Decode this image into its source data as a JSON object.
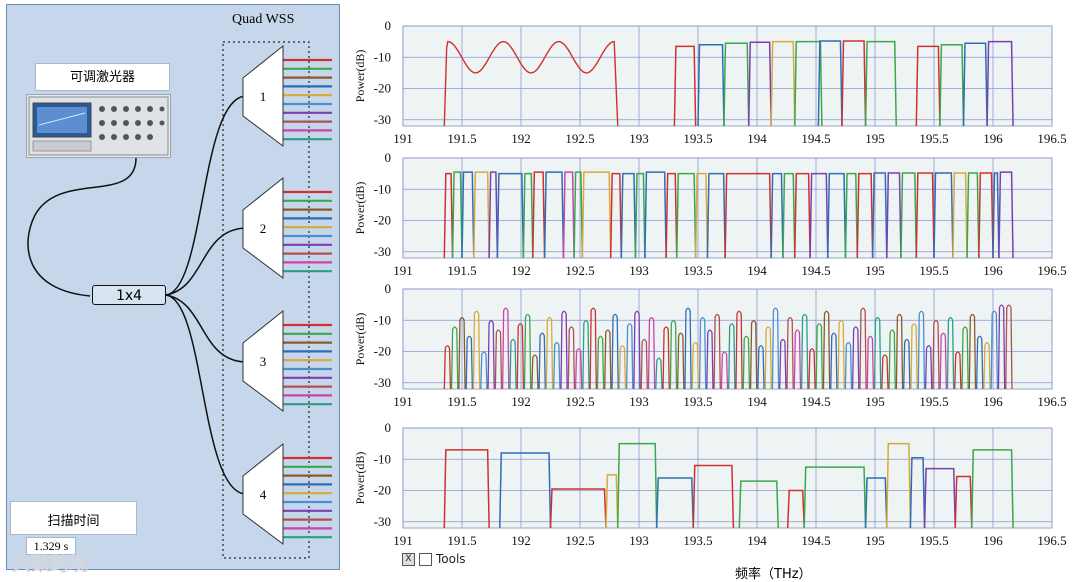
{
  "diagram": {
    "wss_title": "Quad WSS",
    "laser_label": "可调激光器",
    "splitter_label": "1x4",
    "sweep_label": "扫描时间",
    "sweep_value": "1.329 s",
    "port_numbers": [
      "1",
      "2",
      "3",
      "4"
    ],
    "tools_label": "Tools",
    "tools_checkbox": "X",
    "watermark": "大数跨境"
  },
  "colors": {
    "panel_bg": "#c6d7eb",
    "plot_bg": "#eef4f4",
    "grid": "#8f95cf",
    "fiber_colors": [
      "#d03030",
      "#3aa84a",
      "#8b5a2b",
      "#2f6db5",
      "#d9a93a",
      "#4a8fd0",
      "#7a3fb0",
      "#b05050",
      "#cc44aa",
      "#2a9e8a"
    ]
  },
  "chart_data": [
    {
      "type": "line",
      "title": "",
      "xlabel": "频率（THz）",
      "ylabel": "Power(dB)",
      "xlim": [
        191,
        196.5
      ],
      "ylim": [
        -32,
        0
      ],
      "x_ticks": [
        "191",
        "191.5",
        "192",
        "192.5",
        "193",
        "193.5",
        "194",
        "194.5",
        "195",
        "195.5",
        "196",
        "196.5"
      ],
      "y_ticks": [
        "0",
        "-10",
        "-20",
        "-30"
      ],
      "mode": "flat",
      "channels": [
        [
          193.3,
          193.48,
          -6.5,
          "#d03030"
        ],
        [
          193.5,
          193.72,
          -6,
          "#2f6db5"
        ],
        [
          193.72,
          193.93,
          -5.5,
          "#3aa84a"
        ],
        [
          193.93,
          194.12,
          -5.2,
          "#7a3fb0"
        ],
        [
          194.12,
          194.32,
          -5,
          "#d9a93a"
        ],
        [
          194.32,
          194.55,
          -5,
          "#3aa84a"
        ],
        [
          194.52,
          194.72,
          -4.8,
          "#2f6db5"
        ],
        [
          194.72,
          194.92,
          -4.8,
          "#d03030"
        ],
        [
          194.92,
          195.18,
          -5,
          "#3aa84a"
        ],
        [
          195.35,
          195.55,
          -6.5,
          "#d03030"
        ],
        [
          195.55,
          195.75,
          -6,
          "#3aa84a"
        ],
        [
          195.75,
          195.95,
          -5.5,
          "#2f6db5"
        ],
        [
          195.95,
          196.17,
          -5,
          "#7a3fb0"
        ]
      ],
      "ripple": {
        "start": 191.35,
        "end": 192.82,
        "top": -5,
        "bottom": -15,
        "color": "#d03030"
      }
    },
    {
      "type": "line",
      "title": "",
      "xlabel": "频率（THz）",
      "ylabel": "Power(dB)",
      "xlim": [
        191,
        196.5
      ],
      "ylim": [
        -32,
        0
      ],
      "x_ticks": [
        "191",
        "191.5",
        "192",
        "192.5",
        "193",
        "193.5",
        "194",
        "194.5",
        "195",
        "195.5",
        "196",
        "196.5"
      ],
      "y_ticks": [
        "0",
        "-10",
        "-20",
        "-30"
      ],
      "mode": "flat",
      "channels": [
        [
          191.35,
          191.42,
          -5,
          "#d03030"
        ],
        [
          191.42,
          191.5,
          -4.5,
          "#3aa84a"
        ],
        [
          191.5,
          191.6,
          -4.5,
          "#2f6db5"
        ],
        [
          191.6,
          191.73,
          -4.5,
          "#d9a93a"
        ],
        [
          191.73,
          191.8,
          -4.5,
          "#7a3fb0"
        ],
        [
          191.8,
          192.02,
          -5,
          "#2f6db5"
        ],
        [
          192.02,
          192.1,
          -5,
          "#3aa84a"
        ],
        [
          192.1,
          192.2,
          -4.5,
          "#d03030"
        ],
        [
          192.2,
          192.36,
          -4.5,
          "#2f6db5"
        ],
        [
          192.36,
          192.45,
          -4.5,
          "#cc44aa"
        ],
        [
          192.45,
          192.52,
          -4.5,
          "#3aa84a"
        ],
        [
          192.52,
          192.76,
          -4.5,
          "#d9a93a"
        ],
        [
          192.76,
          192.85,
          -5,
          "#d03030"
        ],
        [
          192.85,
          192.97,
          -5,
          "#2f6db5"
        ],
        [
          192.97,
          193.05,
          -5,
          "#3aa84a"
        ],
        [
          193.05,
          193.23,
          -4.5,
          "#2f6db5"
        ],
        [
          193.23,
          193.32,
          -5,
          "#d03030"
        ],
        [
          193.32,
          193.48,
          -5,
          "#3aa84a"
        ],
        [
          193.48,
          193.58,
          -5,
          "#d9a93a"
        ],
        [
          193.58,
          193.73,
          -5,
          "#2f6db5"
        ],
        [
          193.73,
          194.12,
          -5,
          "#d03030"
        ],
        [
          194.12,
          194.22,
          -5,
          "#2f6db5"
        ],
        [
          194.22,
          194.32,
          -5,
          "#3aa84a"
        ],
        [
          194.32,
          194.45,
          -5,
          "#d03030"
        ],
        [
          194.45,
          194.6,
          -5,
          "#7a3fb0"
        ],
        [
          194.6,
          194.75,
          -5,
          "#2f6db5"
        ],
        [
          194.75,
          194.85,
          -5,
          "#3aa84a"
        ],
        [
          194.85,
          194.98,
          -5,
          "#d03030"
        ],
        [
          194.98,
          195.1,
          -4.8,
          "#2f6db5"
        ],
        [
          195.1,
          195.22,
          -4.8,
          "#7a3fb0"
        ],
        [
          195.22,
          195.35,
          -4.8,
          "#3aa84a"
        ],
        [
          195.35,
          195.5,
          -4.8,
          "#d03030"
        ],
        [
          195.5,
          195.66,
          -4.8,
          "#2f6db5"
        ],
        [
          195.66,
          195.78,
          -4.8,
          "#d9a93a"
        ],
        [
          195.78,
          195.88,
          -4.8,
          "#3aa84a"
        ],
        [
          195.88,
          196.0,
          -4.8,
          "#d03030"
        ],
        [
          196.0,
          196.05,
          -4.8,
          "#2f6db5"
        ],
        [
          196.05,
          196.17,
          -4.5,
          "#7a3fb0"
        ]
      ]
    },
    {
      "type": "line",
      "title": "",
      "xlabel": "频率（THz）",
      "ylabel": "Power(dB)",
      "xlim": [
        191,
        196.5
      ],
      "ylim": [
        -32,
        0
      ],
      "x_ticks": [
        "191",
        "191.5",
        "192",
        "192.5",
        "193",
        "193.5",
        "194",
        "194.5",
        "195",
        "195.5",
        "196",
        "196.5"
      ],
      "y_ticks": [
        "0",
        "-10",
        "-20",
        "-30"
      ],
      "mode": "peaks",
      "range": [
        191.35,
        196.17
      ],
      "count": 78,
      "peak_levels": [
        -18,
        -12,
        -9,
        -15,
        -7,
        -20,
        -10,
        -13,
        -6,
        -16,
        -11,
        -8,
        -21,
        -14,
        -9,
        -17,
        -7,
        -12,
        -19,
        -10,
        -6,
        -15,
        -13,
        -8,
        -18,
        -11,
        -7,
        -16,
        -9,
        -22,
        -12,
        -10,
        -14,
        -6,
        -17,
        -9,
        -13,
        -8,
        -20,
        -11,
        -7,
        -15,
        -10,
        -18,
        -12,
        -6,
        -16,
        -9,
        -13,
        -8,
        -19,
        -11,
        -7,
        -14,
        -10,
        -17,
        -12,
        -6,
        -15,
        -9,
        -21,
        -13,
        -8,
        -16,
        -11,
        -7,
        -18,
        -10,
        -14,
        -9,
        -20,
        -12,
        -8,
        -15,
        -17,
        -7,
        -5,
        -5
      ]
    },
    {
      "type": "line",
      "title": "",
      "xlabel": "频率（THz）",
      "ylabel": "Power(dB)",
      "xlim": [
        191,
        196.5
      ],
      "ylim": [
        -32,
        0
      ],
      "x_ticks": [
        "191",
        "191.5",
        "192",
        "192.5",
        "193",
        "193.5",
        "194",
        "194.5",
        "195",
        "195.5",
        "196",
        "196.5"
      ],
      "y_ticks": [
        "0",
        "-10",
        "-20",
        "-30"
      ],
      "mode": "flat",
      "channels": [
        [
          191.35,
          191.73,
          -7,
          "#d03030"
        ],
        [
          191.82,
          192.25,
          -8,
          "#2f6db5"
        ],
        [
          192.25,
          192.72,
          -19.5,
          "#d03030"
        ],
        [
          192.72,
          192.82,
          -15,
          "#d9a93a"
        ],
        [
          192.82,
          193.15,
          -5,
          "#3aa84a"
        ],
        [
          193.15,
          193.46,
          -16,
          "#2f6db5"
        ],
        [
          193.46,
          193.8,
          -12,
          "#d03030"
        ],
        [
          193.85,
          194.18,
          -17,
          "#3aa84a"
        ],
        [
          194.26,
          194.4,
          -20,
          "#d03030"
        ],
        [
          194.4,
          194.92,
          -12.5,
          "#3aa84a"
        ],
        [
          194.92,
          195.1,
          -16,
          "#2f6db5"
        ],
        [
          195.1,
          195.3,
          -5,
          "#d9a93a"
        ],
        [
          195.3,
          195.42,
          -9.5,
          "#2f6db5"
        ],
        [
          195.42,
          195.68,
          -13,
          "#7a3fb0"
        ],
        [
          195.68,
          195.82,
          -15.5,
          "#d03030"
        ],
        [
          195.82,
          196.17,
          -7,
          "#3aa84a"
        ]
      ]
    }
  ]
}
